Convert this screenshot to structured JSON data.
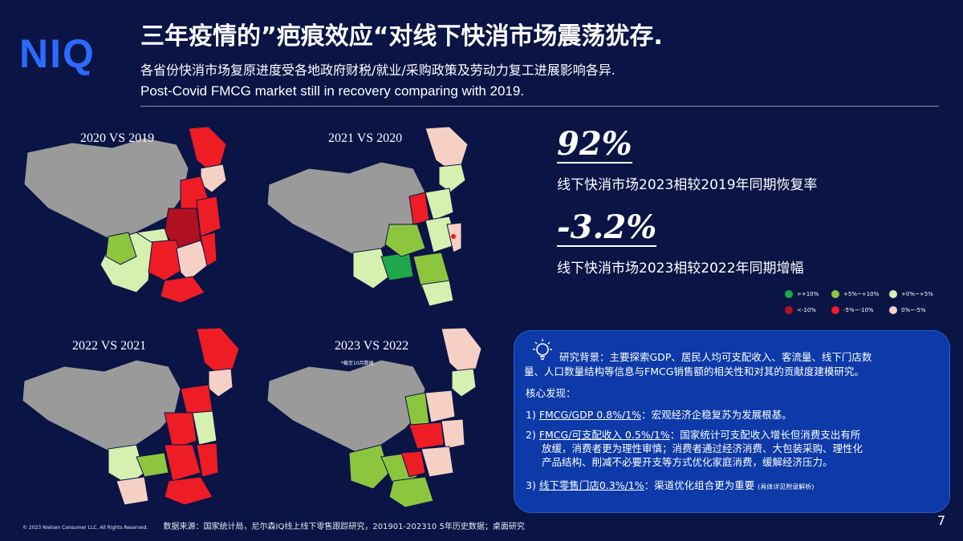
{
  "brand": {
    "logo_text": "NIQ"
  },
  "header": {
    "title": "三年疫情的”疤痕效应“对线下快消市场震荡犹存.",
    "subtitle_cn": "各省份快消市场复原进度受各地政府财税/就业/采购政策及劳动力复工进展影响各异.",
    "subtitle_en": "Post-Covid FMCG market still in recovery comparing with 2019."
  },
  "maps": [
    {
      "label": "2020 VS 2019",
      "note": ""
    },
    {
      "label": "2021 VS 2020",
      "note": ""
    },
    {
      "label": "2022 VS 2021",
      "note": ""
    },
    {
      "label": "2023 VS 2022",
      "note": "*截至10月数据"
    }
  ],
  "stats": [
    {
      "value": "92%",
      "desc": "线下快消市场2023相较2019年同期恢复率"
    },
    {
      "value": "-3.2%",
      "desc": "线下快消市场2023相较2022年同期增幅"
    }
  ],
  "legend": [
    {
      "label": ">+10%",
      "color": "#1fa84a"
    },
    {
      "label": "+5%~+10%",
      "color": "#8cc63f"
    },
    {
      "label": "+0%~+5%",
      "color": "#d6f0b0"
    },
    {
      "label": "<-10%",
      "color": "#b01020"
    },
    {
      "label": "-5%~-10%",
      "color": "#ee1c25"
    },
    {
      "label": "0%~-5%",
      "color": "#f6d0c4"
    }
  ],
  "colors": {
    "gray_region": "#9a9a9a",
    "background": "#0a1445",
    "panel": "#0d3aa8"
  },
  "research": {
    "icon": "lightbulb-icon",
    "background_line1": "研究背景：主要探索GDP、居民人均可支配收入、客流量、线下门店数",
    "background_line2": "量、人口数量结构等信息与FMCG销售额的相关性和对其的贡献度建模研究。",
    "findings_title": "核心发现：",
    "f1_num": "1)",
    "f1_key": "FMCG/GDP 0.8%/1%",
    "f1_text": "：宏观经济企稳复苏为发展根基。",
    "f2_num": "2)",
    "f2_key": "FMCG/可支配收入 0.5%/1%",
    "f2_text": "：国家统计可支配收入增长但消费支出有所",
    "f2_line2": "放缓，消费者更为理性审慎；消费者通过经济消费、大包装采购、理性化",
    "f2_line3": "产品结构、削减不必要开支等方式优化家庭消费，缓解经济压力。",
    "f3_num": "3)",
    "f3_key": "线下零售门店0.3%/1%",
    "f3_text": "：渠道优化组合更为重要",
    "f3_small": "(具体详见附录解析)"
  },
  "footer": {
    "copyright": "© 2023 Nielsen Consumer LLC. All Rights Reserved.",
    "source": "数据来源：国家统计局，尼尔森IQ线上线下零售跟踪研究，201901-202310 5年历史数据；桌面研究",
    "page": "7"
  }
}
